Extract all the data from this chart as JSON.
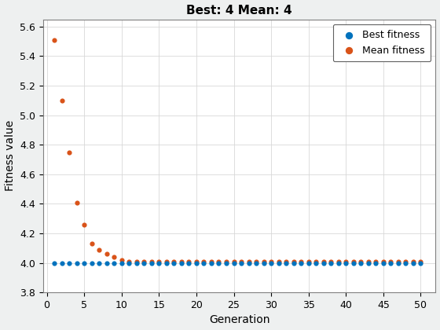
{
  "title": "Best: 4 Mean: 4",
  "xlabel": "Generation",
  "ylabel": "Fitness value",
  "xlim": [
    -0.5,
    52
  ],
  "ylim": [
    3.8,
    5.65
  ],
  "xticks": [
    0,
    5,
    10,
    15,
    20,
    25,
    30,
    35,
    40,
    45,
    50
  ],
  "yticks": [
    3.8,
    4.0,
    4.2,
    4.4,
    4.6,
    4.8,
    5.0,
    5.2,
    5.4,
    5.6
  ],
  "best_color": "#0072BD",
  "mean_color": "#D95319",
  "best_label": "Best fitness",
  "mean_label": "Mean fitness",
  "marker_size": 20,
  "background_color": "#EEF0F0",
  "plot_background_color": "#FFFFFF",
  "best_x": [
    1,
    2,
    3,
    4,
    5,
    6,
    7,
    8,
    9,
    10,
    11,
    12,
    13,
    14,
    15,
    16,
    17,
    18,
    19,
    20,
    21,
    22,
    23,
    24,
    25,
    26,
    27,
    28,
    29,
    30,
    31,
    32,
    33,
    34,
    35,
    36,
    37,
    38,
    39,
    40,
    41,
    42,
    43,
    44,
    45,
    46,
    47,
    48,
    49,
    50
  ],
  "best_y": [
    4.0,
    4.0,
    4.0,
    4.0,
    4.0,
    4.0,
    4.0,
    4.0,
    4.0,
    4.0,
    4.0,
    4.0,
    4.0,
    4.0,
    4.0,
    4.0,
    4.0,
    4.0,
    4.0,
    4.0,
    4.0,
    4.0,
    4.0,
    4.0,
    4.0,
    4.0,
    4.0,
    4.0,
    4.0,
    4.0,
    4.0,
    4.0,
    4.0,
    4.0,
    4.0,
    4.0,
    4.0,
    4.0,
    4.0,
    4.0,
    4.0,
    4.0,
    4.0,
    4.0,
    4.0,
    4.0,
    4.0,
    4.0,
    4.0,
    4.0
  ],
  "mean_x": [
    1,
    2,
    3,
    4,
    5,
    6,
    7,
    8,
    9,
    10,
    11,
    12,
    13,
    14,
    15,
    16,
    17,
    18,
    19,
    20,
    21,
    22,
    23,
    24,
    25,
    26,
    27,
    28,
    29,
    30,
    31,
    32,
    33,
    34,
    35,
    36,
    37,
    38,
    39,
    40,
    41,
    42,
    43,
    44,
    45,
    46,
    47,
    48,
    49,
    50
  ],
  "mean_y": [
    5.51,
    5.1,
    4.75,
    4.41,
    4.26,
    4.13,
    4.09,
    4.06,
    4.04,
    4.02,
    4.01,
    4.01,
    4.01,
    4.01,
    4.01,
    4.01,
    4.01,
    4.01,
    4.01,
    4.01,
    4.01,
    4.01,
    4.01,
    4.01,
    4.01,
    4.01,
    4.01,
    4.01,
    4.01,
    4.01,
    4.01,
    4.01,
    4.01,
    4.01,
    4.01,
    4.01,
    4.01,
    4.01,
    4.01,
    4.01,
    4.01,
    4.01,
    4.01,
    4.01,
    4.01,
    4.01,
    4.01,
    4.01,
    4.01,
    4.01
  ],
  "title_fontsize": 11,
  "label_fontsize": 10,
  "tick_fontsize": 9,
  "legend_fontsize": 9
}
